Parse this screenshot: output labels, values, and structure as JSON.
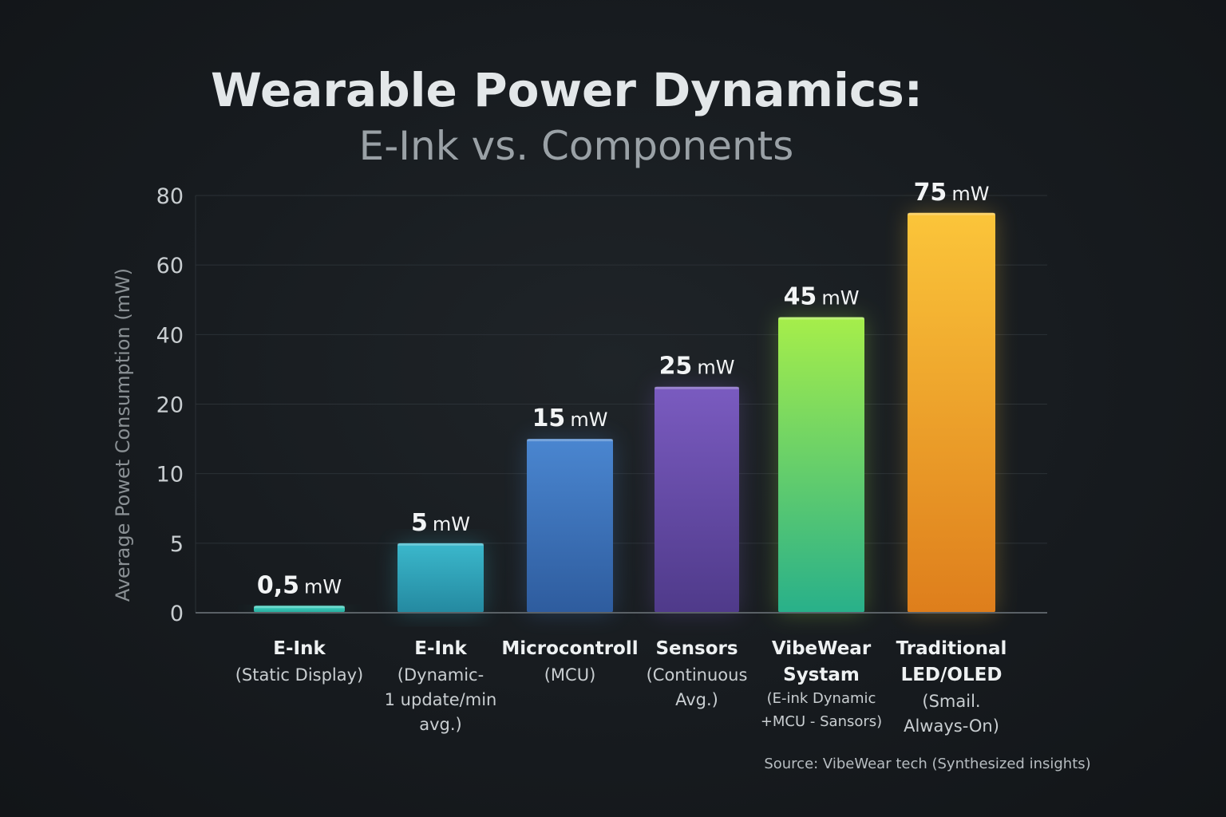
{
  "chart_data": {
    "type": "bar",
    "title": "Wearable Power Dynamics:",
    "subtitle": "E-Ink vs. Components",
    "ylabel": "Average Powet Consumption (mW)",
    "xlabel": "",
    "y_ticks": [
      "0",
      "5",
      "10",
      "20",
      "40",
      "60",
      "80"
    ],
    "y_tick_values": [
      0,
      5,
      10,
      20,
      40,
      60,
      80
    ],
    "grid": true,
    "categories": [
      {
        "main": "E-Ink",
        "sub": [
          "(Static Display)"
        ],
        "sub_small": false
      },
      {
        "main": "E-Ink",
        "sub": [
          "(Dynamic-",
          "1 update/min",
          "avg.)"
        ],
        "sub_small": false
      },
      {
        "main": "Microcontroll",
        "sub": [
          "(MCU)"
        ],
        "sub_small": false
      },
      {
        "main": "Sensors",
        "sub": [
          "(Continuous",
          "Avg.)"
        ],
        "sub_small": false
      },
      {
        "main": "VibeWear",
        "main2": "Systam",
        "sub": [
          "(E-ink Dynamic",
          "+MCU - Sansors)"
        ],
        "sub_small": true
      },
      {
        "main": "Traditional",
        "main2": "LED/OLED",
        "sub": [
          "(Smail.",
          "Always-On)"
        ],
        "sub_small": false
      }
    ],
    "values": [
      0.5,
      5,
      15,
      25,
      45,
      75
    ],
    "value_labels": [
      {
        "num": "0,5",
        "unit": "mW"
      },
      {
        "num": "5",
        "unit": "mW"
      },
      {
        "num": "15",
        "unit": "mW"
      },
      {
        "num": "25",
        "unit": "mW"
      },
      {
        "num": "45",
        "unit": "mW"
      },
      {
        "num": "75",
        "unit": "mW"
      }
    ],
    "colors": [
      [
        "#3fd6c4",
        "#25a89a"
      ],
      [
        "#3bb8cc",
        "#2489a0"
      ],
      [
        "#4a86d0",
        "#2e5c9e"
      ],
      [
        "#7a5bc0",
        "#4f3a8a"
      ],
      [
        "#a6ee4a",
        "#28b08a"
      ],
      [
        "#fbc53a",
        "#de7e1c"
      ]
    ],
    "source": "Source: VibeWear tech (Synthesized insights)"
  }
}
